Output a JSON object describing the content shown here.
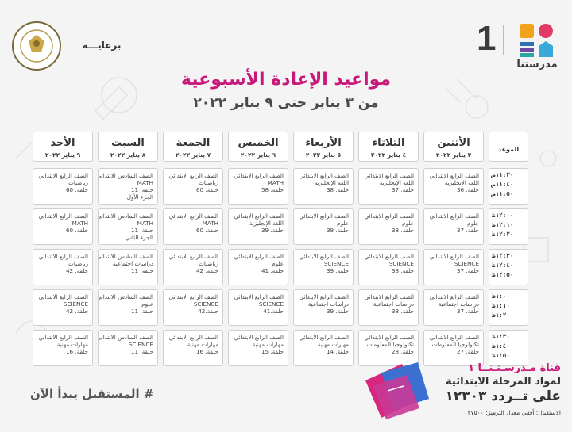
{
  "header": {
    "sponsor": "برعايـــة",
    "brand_number": "1",
    "brand_name": "مدرستنا",
    "ministry_seal_text": "MINISTRY OF EDUCATION AND TECHNICAL EDUCATION"
  },
  "title": "مواعيد الإعادة الأسبوعية",
  "subtitle": "من ٣ يناير حتى ٩ يناير ٢٠٢٢",
  "table": {
    "time_header": "الموعد",
    "days": [
      {
        "name": "الأثنين",
        "date": "٣ يناير ٢٠٢٢"
      },
      {
        "name": "الثلاثاء",
        "date": "٤ يناير ٢٠٢٢"
      },
      {
        "name": "الأربعاء",
        "date": "٥ يناير ٢٠٢٢"
      },
      {
        "name": "الخميس",
        "date": "٦ يناير ٢٠٢٢"
      },
      {
        "name": "الجمعة",
        "date": "٧ يناير ٢٠٢٢"
      },
      {
        "name": "السبت",
        "date": "٨ يناير ٢٠٢٢"
      },
      {
        "name": "الأحد",
        "date": "٩ يناير ٢٠٢٢"
      }
    ],
    "time_slots": [
      [
        "١١:٣٠ص",
        "١١:٤٠ص",
        "١١:٥٠ص"
      ],
      [
        "١٢:٠٠ظ",
        "١٢:١٠ظ",
        "١٢:٢٠ظ"
      ],
      [
        "١٢:٣٠ظ",
        "١٢:٤٠ظ",
        "١٢:٥٠ظ"
      ],
      [
        "١:٠٠ظ",
        "١:١٠ظ",
        "١:٢٠ظ"
      ],
      [
        "١:٣٠ظ",
        "١:٤٠ظ",
        "١:٥٠ظ"
      ]
    ],
    "rows": [
      [
        [
          "الصف الرابع الابتدائي",
          "اللغة الإنجليزية",
          "حلقة. 36"
        ],
        [
          "الصف الرابع الابتدائي",
          "اللغة الإنجليزية",
          "حلقة. 37"
        ],
        [
          "الصف الرابع الابتدائي",
          "اللغة الإنجليزية",
          "حلقة. 38"
        ],
        [
          "الصف الرابع الابتدائي",
          "MATH",
          "حلقة. 58"
        ],
        [
          "الصف الرابع الابتدائي",
          "رياضيات",
          "حلقة. 60"
        ],
        [
          "الصف السادس الابتدائي",
          "MATH",
          "حلقة. 11",
          "الجزء الأول"
        ],
        [
          "الصف الرابع الابتدائي",
          "رياضيات",
          "حلقة. 60"
        ]
      ],
      [
        [
          "الصف الرابع الابتدائي",
          "علوم",
          "حلقة. 37"
        ],
        [
          "الصف الرابع الابتدائي",
          "علوم",
          "حلقة. 38"
        ],
        [
          "الصف الرابع الابتدائي",
          "علوم",
          "حلقة. 39"
        ],
        [
          "الصف الرابع الابتدائي",
          "اللغة الإنجليزية",
          "حلقة. 39"
        ],
        [
          "الصف الرابع الابتدائي",
          "MATH",
          "حلقة. 60"
        ],
        [
          "الصف السادس الابتدائي",
          "MATH",
          "حلقة. 11",
          "الجزء الثاني"
        ],
        [
          "الصف الرابع الابتدائي",
          "MATH",
          "حلقة. 60"
        ]
      ],
      [
        [
          "الصف الرابع الابتدائي",
          "SCIENCE",
          "حلقة. 37"
        ],
        [
          "الصف الرابع الابتدائي",
          "SCIENCE",
          "حلقة. 38"
        ],
        [
          "الصف الرابع الابتدائي",
          "SCIENCE",
          "حلقة. 39"
        ],
        [
          "الصف الرابع الابتدائي",
          "علوم",
          "حلقة. 41"
        ],
        [
          "الصف الرابع الابتدائي",
          "رياضيات",
          "حلقة. 42"
        ],
        [
          "الصف السادس الابتدائي",
          "دراسات اجتماعية",
          "حلقة. 11"
        ],
        [
          "الصف الرابع الابتدائي",
          "رياضيات",
          "حلقة. 42"
        ]
      ],
      [
        [
          "الصف الرابع الابتدائي",
          "دراسات اجتماعية",
          "حلقة. 37"
        ],
        [
          "الصف الرابع الابتدائي",
          "دراسات اجتماعية",
          "حلقة. 38"
        ],
        [
          "الصف الرابع الابتدائي",
          "دراسات اجتماعية",
          "حلقة. 39"
        ],
        [
          "الصف الرابع الابتدائي",
          "SCIENCE",
          "حلقة.41"
        ],
        [
          "الصف الرابع الابتدائي",
          "SCIENCE",
          "حلقة.42"
        ],
        [
          "الصف السادس الابتدائي",
          "علوم",
          "حلقة. 11"
        ],
        [
          "الصف الرابع الابتدائي",
          "SCIENCE",
          "حلقة. 42"
        ]
      ],
      [
        [
          "الصف الرابع الابتدائي",
          "تكنولوجيا المعلومات",
          "حلقة. 27"
        ],
        [
          "الصف الرابع الابتدائي",
          "تكنولوجيا المعلومات",
          "حلقة. 28"
        ],
        [
          "الصف الرابع الابتدائي",
          "مهارات مهنية",
          "حلقة. 14"
        ],
        [
          "الصف الرابع الابتدائي",
          "مهارات مهنية",
          "حلقة. 15"
        ],
        [
          "الصف الرابع الابتدائي",
          "مهارات مهنية",
          "حلقة. 16"
        ],
        [
          "الصف السادس الابتدائي",
          "SCIENCE",
          "حلقة. 11"
        ],
        [
          "الصف الرابع الابتدائي",
          "مهارات مهنية",
          "حلقة. 16"
        ]
      ]
    ]
  },
  "footer": {
    "hashtag": "# المستقبل يبدأ الآن",
    "channel_line": "قناة مـدرسـتـنــا ١",
    "stage_line": "لمواد المرحلة الابتدائية",
    "freq_line": "على تــردد ١٢٣٠٣",
    "reception_line": "الاستقبال: أفقي معدل الترميز: ٢٧٥٠٠"
  },
  "colors": {
    "title": "#c8197a",
    "text": "#4a4a4a",
    "cell_bg": "#ffffff",
    "cell_border": "#cfcfcf"
  }
}
